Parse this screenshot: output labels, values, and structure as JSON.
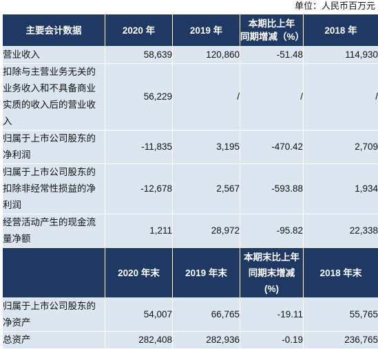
{
  "unit_note": "单位：人民币百万元",
  "header_top": {
    "col0": "主要会计数据",
    "col1": "2020 年",
    "col2": "2019 年",
    "col3_lines": [
      "本期比上年",
      "同期增减（%）"
    ],
    "col4": "2018 年"
  },
  "rows_top": [
    {
      "label_lines": [
        "营业收入"
      ],
      "values": [
        "58,639",
        "120,860",
        "-51.48",
        "114,930"
      ]
    },
    {
      "label_lines": [
        "扣除与主营业务无关的",
        "业务收入和不具备商业",
        "实质的收入后的营业收",
        "入"
      ],
      "values": [
        "56,229",
        "/",
        "/",
        "/"
      ]
    },
    {
      "label_lines": [
        "归属于上市公司股东的",
        "净利润"
      ],
      "values": [
        "-11,835",
        "3,195",
        "-470.42",
        "2,709"
      ]
    },
    {
      "label_lines": [
        "归属于上市公司股东的",
        "扣除非经常性损益的净",
        "利润"
      ],
      "values": [
        "-12,678",
        "2,567",
        "-593.88",
        "1,934"
      ]
    },
    {
      "label_lines": [
        "经营活动产生的现金流",
        "量净额"
      ],
      "values": [
        "1,211",
        "28,972",
        "-95.82",
        "22,338"
      ]
    }
  ],
  "header_bottom": {
    "col1": "2020 年末",
    "col2": "2019 年末",
    "col3_lines": [
      "本期末比上年",
      "同期末增减",
      "(%)"
    ],
    "col4": "2018 年末"
  },
  "rows_bottom": [
    {
      "label_lines": [
        "归属于上市公司股东的",
        "净资产"
      ],
      "values": [
        "54,007",
        "66,765",
        "-19.11",
        "55,765"
      ]
    },
    {
      "label_lines": [
        "总资产"
      ],
      "values": [
        "282,408",
        "282,936",
        "-0.19",
        "236,765"
      ]
    }
  ],
  "colors": {
    "header_bg": "#1f3864",
    "cell_bg": "#dce6f1",
    "header_text": "#ffffff",
    "body_text": "#111111",
    "separator": "#ffffff"
  }
}
